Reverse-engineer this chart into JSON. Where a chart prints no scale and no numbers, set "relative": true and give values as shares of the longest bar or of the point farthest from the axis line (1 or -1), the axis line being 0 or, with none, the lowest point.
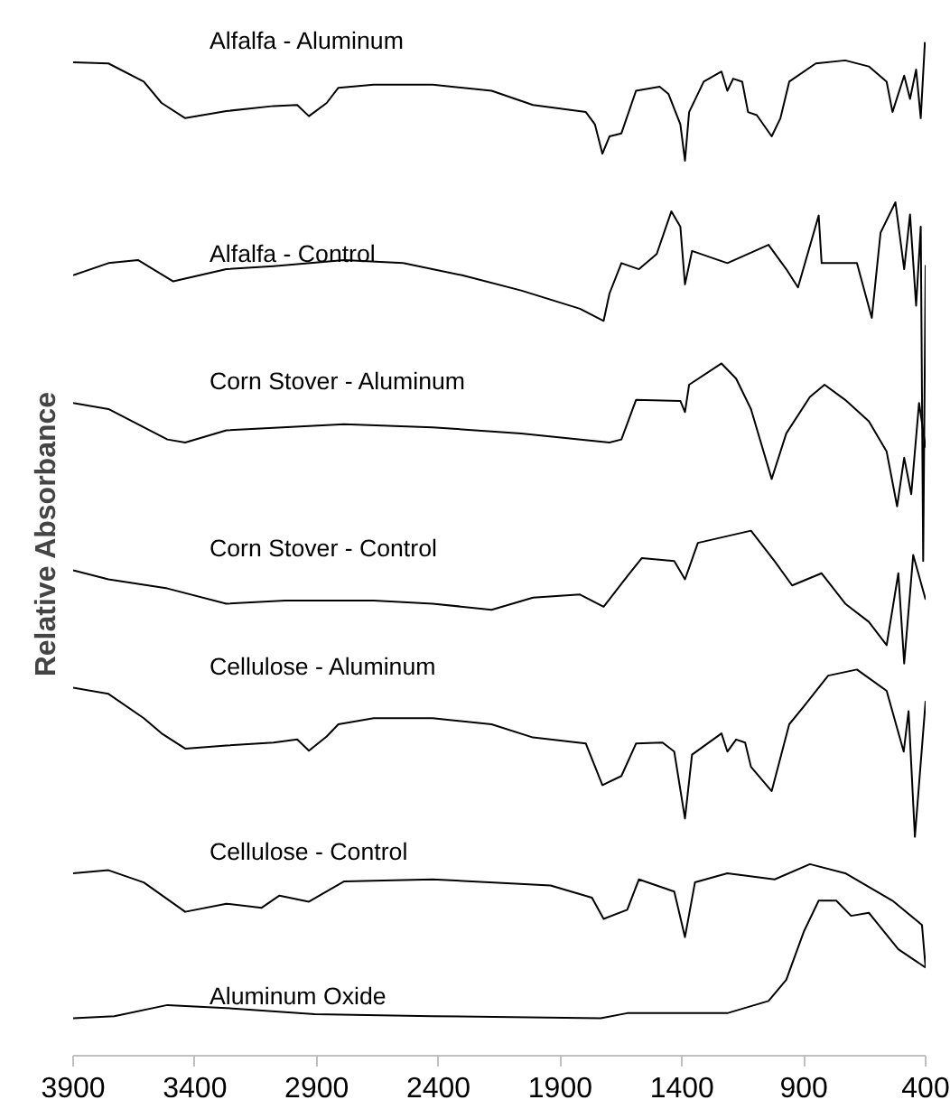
{
  "chart_data": {
    "type": "line",
    "relative": true,
    "ylabel": "Relative Absorbance",
    "xlim": [
      3900,
      400
    ],
    "xticks": [
      3900,
      3400,
      2900,
      2400,
      1900,
      1400,
      900,
      400
    ],
    "grid": false,
    "line_style": "solid",
    "series": [
      {
        "name": "Alfalfa - Aluminum",
        "color": "#000000",
        "x": [
          3900,
          3755,
          3610,
          3537,
          3440,
          3271,
          3077,
          2980,
          2932,
          2859,
          2811,
          2666,
          2424,
          2182,
          2012,
          1795,
          1758,
          1727,
          1698,
          1649,
          1589,
          1492,
          1456,
          1407,
          1388,
          1371,
          1311,
          1238,
          1214,
          1190,
          1153,
          1129,
          1093,
          1032,
          996,
          960,
          851,
          730,
          633,
          560,
          536,
          488,
          464,
          439,
          420,
          403
        ],
        "values": [
          0.98,
          0.979,
          0.961,
          0.94,
          0.925,
          0.932,
          0.937,
          0.938,
          0.927,
          0.94,
          0.955,
          0.958,
          0.958,
          0.952,
          0.938,
          0.931,
          0.919,
          0.89,
          0.907,
          0.91,
          0.952,
          0.956,
          0.949,
          0.919,
          0.883,
          0.931,
          0.961,
          0.971,
          0.952,
          0.964,
          0.961,
          0.931,
          0.928,
          0.907,
          0.925,
          0.961,
          0.979,
          0.982,
          0.976,
          0.961,
          0.931,
          0.967,
          0.944,
          0.973,
          0.925,
          1.0
        ]
      },
      {
        "name": "Alfalfa - Control",
        "color": "#000000",
        "x": [
          3900,
          3755,
          3634,
          3489,
          3271,
          3077,
          2787,
          2545,
          2303,
          2061,
          1819,
          1722,
          1698,
          1649,
          1577,
          1504,
          1444,
          1407,
          1388,
          1359,
          1214,
          1045,
          972,
          924,
          839,
          827,
          682,
          621,
          585,
          524,
          488,
          464,
          439,
          420,
          410,
          400
        ],
        "values": [
          0.77,
          0.782,
          0.785,
          0.764,
          0.776,
          0.779,
          0.785,
          0.782,
          0.77,
          0.755,
          0.737,
          0.725,
          0.752,
          0.782,
          0.776,
          0.791,
          0.833,
          0.818,
          0.761,
          0.794,
          0.782,
          0.8,
          0.776,
          0.758,
          0.829,
          0.782,
          0.782,
          0.728,
          0.812,
          0.842,
          0.776,
          0.83,
          0.74,
          0.818,
          0.488,
          0.78
        ]
      },
      {
        "name": "Corn Stover - Aluminum",
        "color": "#000000",
        "x": [
          3900,
          3755,
          3513,
          3440,
          3271,
          2787,
          2424,
          2061,
          1698,
          1649,
          1589,
          1407,
          1388,
          1371,
          1238,
          1178,
          1117,
          1032,
          972,
          875,
          815,
          730,
          633,
          560,
          517,
          488,
          459,
          427,
          400
        ],
        "values": [
          0.644,
          0.638,
          0.608,
          0.605,
          0.617,
          0.623,
          0.62,
          0.614,
          0.605,
          0.608,
          0.647,
          0.646,
          0.635,
          0.662,
          0.683,
          0.668,
          0.638,
          0.569,
          0.614,
          0.65,
          0.662,
          0.647,
          0.626,
          0.596,
          0.542,
          0.59,
          0.554,
          0.644,
          0.6
        ]
      },
      {
        "name": "Corn Stover - Control",
        "color": "#000000",
        "x": [
          3900,
          3755,
          3513,
          3271,
          3029,
          2666,
          2424,
          2182,
          2012,
          1819,
          1722,
          1625,
          1565,
          1432,
          1388,
          1335,
          1117,
          1020,
          948,
          827,
          730,
          633,
          560,
          512,
          488,
          451,
          400
        ],
        "values": [
          0.479,
          0.47,
          0.461,
          0.446,
          0.449,
          0.449,
          0.446,
          0.44,
          0.452,
          0.455,
          0.443,
          0.473,
          0.491,
          0.488,
          0.47,
          0.506,
          0.518,
          0.488,
          0.464,
          0.476,
          0.446,
          0.428,
          0.405,
          0.476,
          0.387,
          0.494,
          0.45
        ]
      },
      {
        "name": "Cellulose - Aluminum",
        "color": "#000000",
        "x": [
          3900,
          3755,
          3610,
          3537,
          3440,
          3271,
          3077,
          2980,
          2932,
          2859,
          2811,
          2666,
          2424,
          2182,
          2012,
          1795,
          1727,
          1649,
          1589,
          1480,
          1432,
          1388,
          1359,
          1238,
          1214,
          1178,
          1141,
          1117,
          1032,
          960,
          899,
          800,
          682,
          560,
          490,
          470,
          444,
          400
        ],
        "values": [
          0.363,
          0.357,
          0.333,
          0.318,
          0.303,
          0.306,
          0.309,
          0.312,
          0.301,
          0.315,
          0.327,
          0.333,
          0.333,
          0.327,
          0.314,
          0.308,
          0.267,
          0.276,
          0.308,
          0.309,
          0.3,
          0.234,
          0.297,
          0.318,
          0.3,
          0.312,
          0.309,
          0.285,
          0.261,
          0.327,
          0.345,
          0.375,
          0.381,
          0.36,
          0.3,
          0.34,
          0.216,
          0.35
        ]
      },
      {
        "name": "Cellulose - Control",
        "color": "#000000",
        "x": [
          3900,
          3755,
          3610,
          3440,
          3271,
          3126,
          3053,
          2932,
          2787,
          2424,
          1940,
          1770,
          1722,
          1625,
          1577,
          1432,
          1388,
          1347,
          1214,
          1020,
          875,
          730,
          536,
          415,
          400
        ],
        "values": [
          0.18,
          0.183,
          0.171,
          0.142,
          0.15,
          0.146,
          0.158,
          0.152,
          0.172,
          0.174,
          0.168,
          0.156,
          0.135,
          0.144,
          0.174,
          0.162,
          0.117,
          0.171,
          0.18,
          0.174,
          0.189,
          0.18,
          0.153,
          0.129,
          0.087
        ]
      },
      {
        "name": "Aluminum Oxide",
        "color": "#000000",
        "x": [
          3900,
          3731,
          3513,
          3271,
          2908,
          2424,
          1734,
          1625,
          1214,
          1045,
          972,
          899,
          839,
          767,
          706,
          633,
          512,
          400
        ],
        "values": [
          0.037,
          0.039,
          0.05,
          0.047,
          0.041,
          0.039,
          0.037,
          0.042,
          0.042,
          0.054,
          0.075,
          0.123,
          0.153,
          0.153,
          0.138,
          0.141,
          0.105,
          0.087
        ]
      }
    ]
  }
}
